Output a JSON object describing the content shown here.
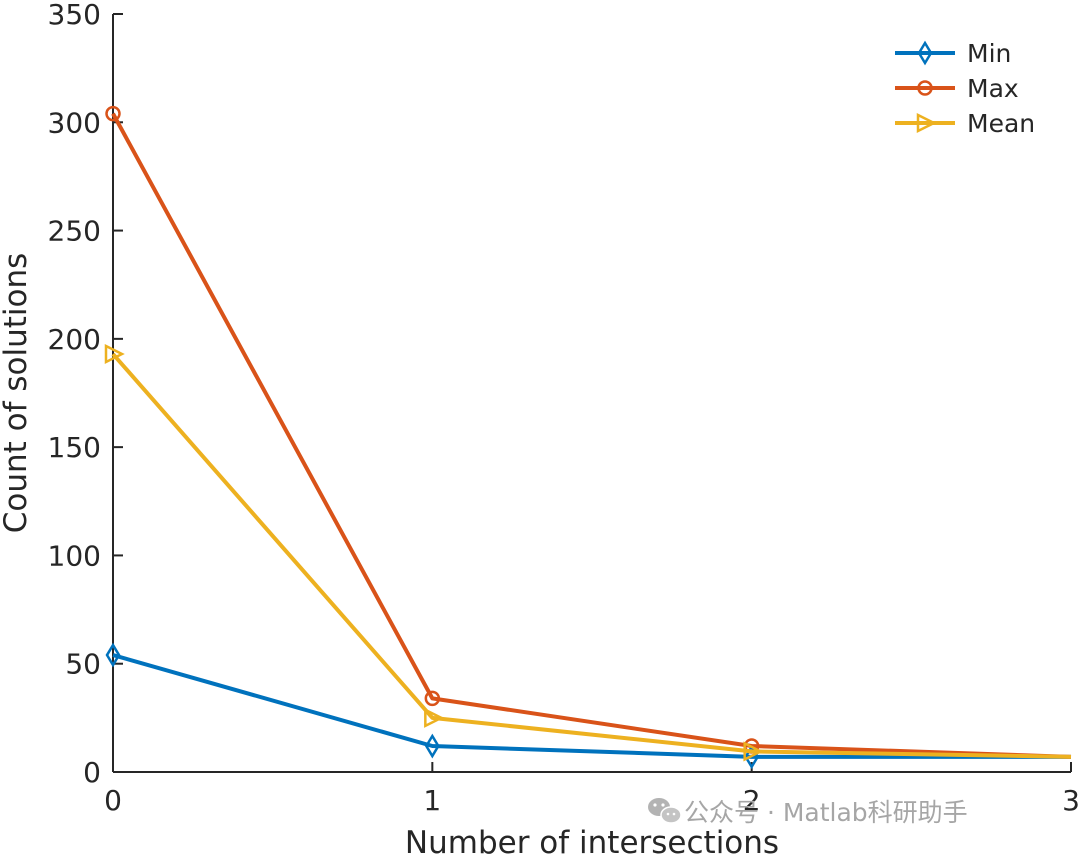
{
  "chart_data": {
    "type": "line",
    "title": "",
    "xlabel": "Number of intersections",
    "ylabel": "Count of solutions",
    "xlim": [
      0,
      3
    ],
    "ylim": [
      0,
      350
    ],
    "xticks": [
      0,
      1,
      2,
      3
    ],
    "yticks": [
      0,
      50,
      100,
      150,
      200,
      250,
      300,
      350
    ],
    "x": [
      0,
      1,
      2,
      3
    ],
    "grid": false,
    "legend_position": "top-right",
    "series": [
      {
        "name": "Min",
        "values": [
          54,
          12,
          7,
          7
        ],
        "color": "#0072BD",
        "marker": "diamond"
      },
      {
        "name": "Max",
        "values": [
          304,
          34,
          12,
          7
        ],
        "color": "#D95319",
        "marker": "circle"
      },
      {
        "name": "Mean",
        "values": [
          193,
          25,
          9.5,
          7
        ],
        "color": "#EDB120",
        "marker": "triangle-right"
      }
    ]
  },
  "watermark": {
    "icon": "wechat-icon",
    "text": "公众号 · Matlab科研助手"
  }
}
